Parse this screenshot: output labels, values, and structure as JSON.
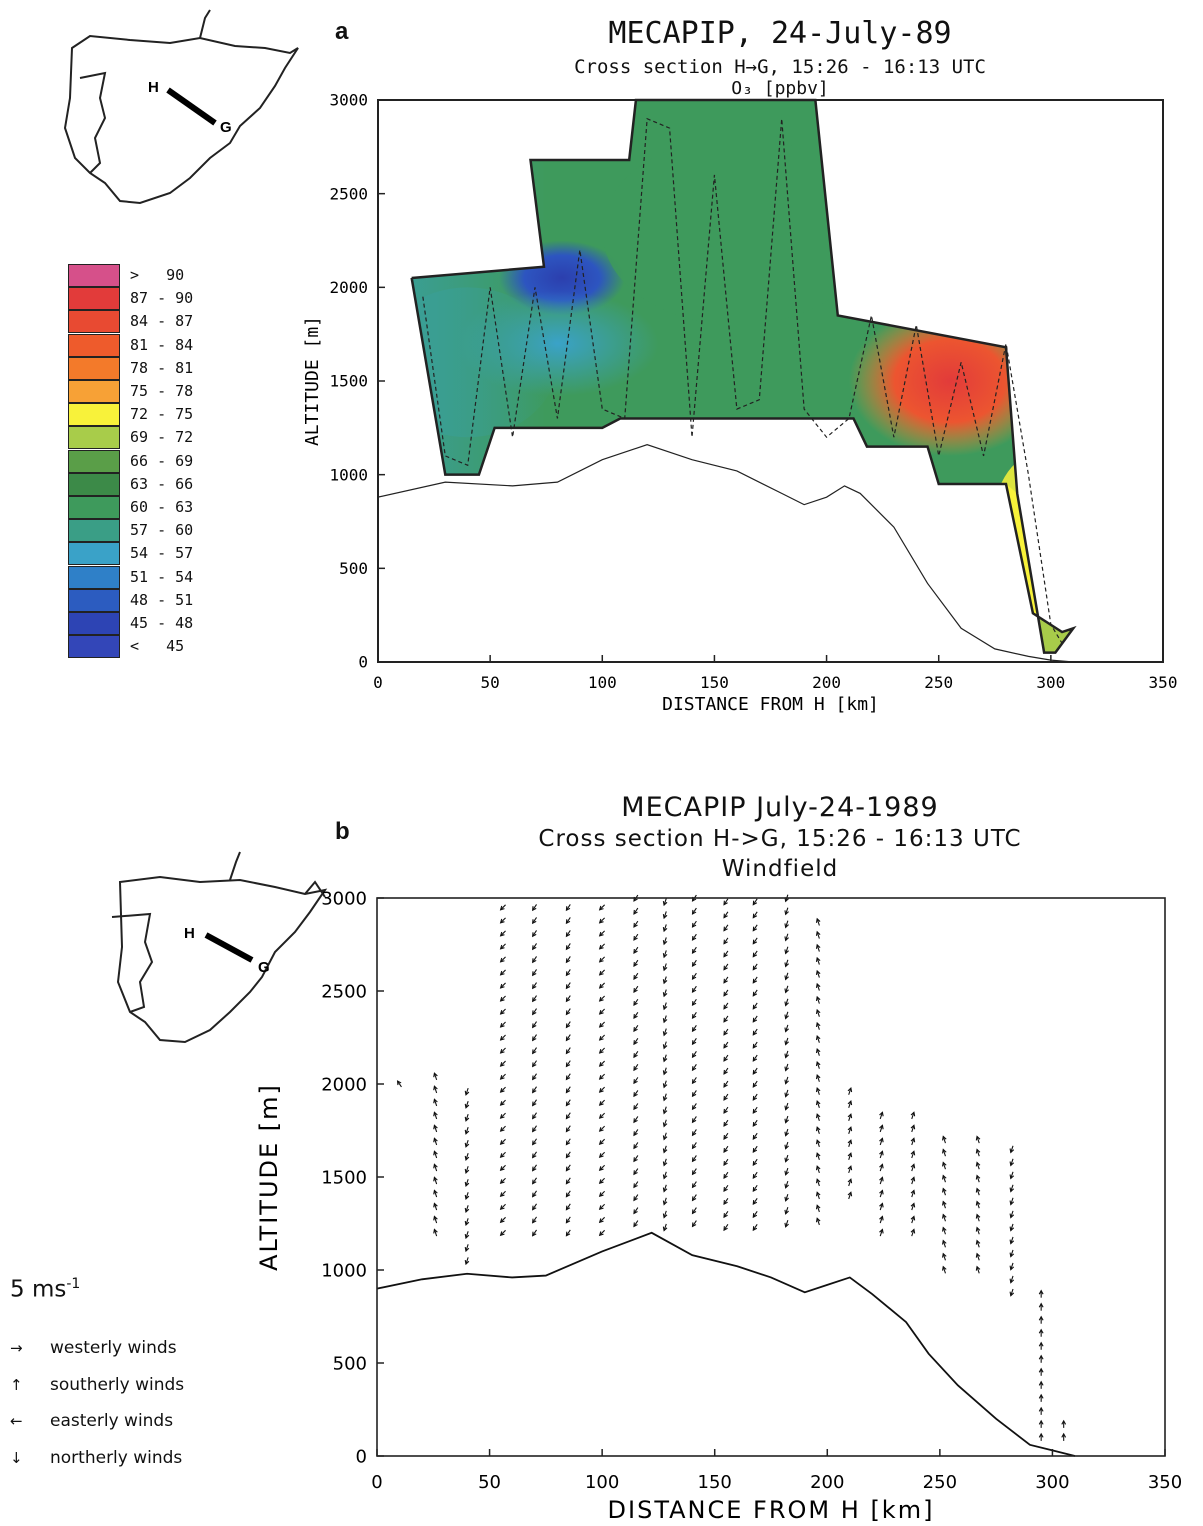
{
  "panel_a": {
    "label": "a",
    "title": "MECAPIP, 24-July-89",
    "subtitle": "Cross section H→G, 15:26 - 16:13 UTC",
    "variable": "O₃ [ppbv]",
    "map_labels": {
      "start": "H",
      "end": "G"
    }
  },
  "panel_b": {
    "label": "b",
    "title": "MECAPIP July-24-1989",
    "subtitle": "Cross section H->G, 15:26 - 16:13 UTC",
    "variable": "Windfield",
    "map_labels": {
      "start": "H",
      "end": "G"
    },
    "speed_reference": "5 ms",
    "speed_reference_exponent": "-1",
    "wind_key": [
      {
        "arrow": "→",
        "label": "westerly winds"
      },
      {
        "arrow": "↑",
        "label": "southerly winds"
      },
      {
        "arrow": "←",
        "label": "easterly winds"
      },
      {
        "arrow": "↓",
        "label": "northerly winds"
      }
    ]
  },
  "legend": [
    {
      "label": ">   90",
      "color": "#d6508a"
    },
    {
      "label": "87 - 90",
      "color": "#e23b3a"
    },
    {
      "label": "84 - 87",
      "color": "#e84a32"
    },
    {
      "label": "81 - 84",
      "color": "#ee5b2c"
    },
    {
      "label": "78 - 81",
      "color": "#f37a2a"
    },
    {
      "label": "75 - 78",
      "color": "#f7a136"
    },
    {
      "label": "72 - 75",
      "color": "#f8f23a"
    },
    {
      "label": "69 - 72",
      "color": "#a8cc4a"
    },
    {
      "label": "66 - 69",
      "color": "#5a9e48"
    },
    {
      "label": "63 - 66",
      "color": "#3c8a48"
    },
    {
      "label": "60 - 63",
      "color": "#3e9a5c"
    },
    {
      "label": "57 - 60",
      "color": "#3a9e86"
    },
    {
      "label": "54 - 57",
      "color": "#3aa2c8"
    },
    {
      "label": "51 - 54",
      "color": "#2f80c8"
    },
    {
      "label": "48 - 51",
      "color": "#2c5cc0"
    },
    {
      "label": "45 - 48",
      "color": "#2d44b4"
    },
    {
      "label": "<   45",
      "color": "#3346b8"
    }
  ],
  "chart_data": [
    {
      "type": "heatmap",
      "title": "MECAPIP, 24-July-89",
      "subtitle": "Cross section H→G, 15:26 - 16:13 UTC",
      "variable": "O₃ [ppbv]",
      "xlabel": "DISTANCE FROM H [km]",
      "ylabel": "ALTITUDE [m]",
      "xlim": [
        0,
        350
      ],
      "ylim": [
        0,
        3000
      ],
      "xticks": [
        0,
        50,
        100,
        150,
        200,
        250,
        300,
        350
      ],
      "yticks": [
        0,
        500,
        1000,
        1500,
        2000,
        2500,
        3000
      ],
      "region_outline": [
        [
          15,
          2050
        ],
        [
          30,
          1000
        ],
        [
          45,
          1000
        ],
        [
          52,
          1250
        ],
        [
          100,
          1250
        ],
        [
          108,
          1300
        ],
        [
          212,
          1300
        ],
        [
          218,
          1150
        ],
        [
          245,
          1150
        ],
        [
          250,
          950
        ],
        [
          280,
          950
        ],
        [
          292,
          260
        ],
        [
          305,
          160
        ],
        [
          310,
          180
        ],
        [
          302,
          50
        ],
        [
          297,
          50
        ],
        [
          285,
          900
        ],
        [
          280,
          1680
        ],
        [
          205,
          1850
        ],
        [
          195,
          3000
        ],
        [
          115,
          3000
        ],
        [
          112,
          2680
        ],
        [
          68,
          2680
        ],
        [
          74,
          2110
        ],
        [
          15,
          2050
        ]
      ],
      "ozone_zones": [
        {
          "range": "45 - 48",
          "center": [
            82,
            2050
          ]
        },
        {
          "range": "51 - 54",
          "center": [
            80,
            1700
          ]
        },
        {
          "range": "57 - 60",
          "center": [
            40,
            1600
          ]
        },
        {
          "range": "60 - 63",
          "center": [
            160,
            2300
          ]
        },
        {
          "range": "78 - 81",
          "center": [
            255,
            1500
          ]
        },
        {
          "range": "72 - 75",
          "center": [
            292,
            600
          ]
        }
      ],
      "terrain": {
        "x": [
          0,
          30,
          60,
          80,
          100,
          120,
          140,
          160,
          180,
          190,
          200,
          208,
          215,
          230,
          245,
          260,
          275,
          290,
          300,
          310
        ],
        "y": [
          880,
          960,
          940,
          960,
          1080,
          1160,
          1080,
          1020,
          900,
          840,
          880,
          940,
          900,
          720,
          420,
          180,
          70,
          30,
          10,
          0
        ]
      },
      "flight_track": {
        "x": [
          20,
          30,
          40,
          50,
          60,
          70,
          80,
          90,
          100,
          110,
          120,
          130,
          140,
          150,
          160,
          170,
          180,
          190,
          200,
          210,
          220,
          230,
          240,
          250,
          260,
          270,
          280,
          290,
          300,
          305
        ],
        "y": [
          1950,
          1100,
          1050,
          2000,
          1200,
          2000,
          1300,
          2200,
          1350,
          1300,
          2900,
          2850,
          1200,
          2600,
          1350,
          1400,
          2900,
          1350,
          1200,
          1300,
          1850,
          1200,
          1800,
          1100,
          1600,
          1100,
          1700,
          1000,
          200,
          100
        ]
      }
    },
    {
      "type": "scatter",
      "title": "MECAPIP July-24-1989",
      "subtitle": "Cross section H->G, 15:26 - 16:13 UTC",
      "variable": "Windfield",
      "xlabel": "DISTANCE FROM H [km]",
      "ylabel": "ALTITUDE [m]",
      "xlim": [
        0,
        350
      ],
      "ylim": [
        0,
        3000
      ],
      "xticks": [
        0,
        50,
        100,
        150,
        200,
        250,
        300,
        350
      ],
      "yticks": [
        0,
        500,
        1000,
        1500,
        2000,
        2500,
        3000
      ],
      "terrain": {
        "x": [
          0,
          20,
          40,
          60,
          75,
          100,
          122,
          140,
          160,
          175,
          190,
          200,
          210,
          220,
          235,
          245,
          258,
          275,
          290,
          300,
          310
        ],
        "y": [
          900,
          950,
          980,
          960,
          970,
          1100,
          1200,
          1080,
          1020,
          960,
          880,
          920,
          960,
          870,
          720,
          550,
          380,
          200,
          60,
          30,
          0
        ]
      },
      "wind_columns": [
        {
          "x": 10,
          "z_bottom": 2000,
          "z_top": 2060,
          "u": -2,
          "v": 3
        },
        {
          "x": 26,
          "z_bottom": 1200,
          "z_top": 2050,
          "u": -1,
          "v": 3
        },
        {
          "x": 40,
          "z_bottom": 1050,
          "z_top": 2000,
          "u": -1,
          "v": -3
        },
        {
          "x": 56,
          "z_bottom": 1200,
          "z_top": 3000,
          "u": -3,
          "v": -3
        },
        {
          "x": 70,
          "z_bottom": 1200,
          "z_top": 3000,
          "u": -2,
          "v": -3
        },
        {
          "x": 85,
          "z_bottom": 1200,
          "z_top": 3000,
          "u": -2,
          "v": -3
        },
        {
          "x": 100,
          "z_bottom": 1200,
          "z_top": 3000,
          "u": -3,
          "v": -3
        },
        {
          "x": 115,
          "z_bottom": 1250,
          "z_top": 3000,
          "u": -2,
          "v": -3
        },
        {
          "x": 128,
          "z_bottom": 1230,
          "z_top": 3000,
          "u": -1,
          "v": -3
        },
        {
          "x": 141,
          "z_bottom": 1250,
          "z_top": 3000,
          "u": -2,
          "v": -3
        },
        {
          "x": 155,
          "z_bottom": 1230,
          "z_top": 3000,
          "u": -2,
          "v": -3
        },
        {
          "x": 168,
          "z_bottom": 1230,
          "z_top": 3000,
          "u": -2,
          "v": -3
        },
        {
          "x": 182,
          "z_bottom": 1250,
          "z_top": 3000,
          "u": -1,
          "v": -3
        },
        {
          "x": 196,
          "z_bottom": 1260,
          "z_top": 2900,
          "u": -1,
          "v": 3
        },
        {
          "x": 210,
          "z_bottom": 1400,
          "z_top": 2020,
          "u": 1,
          "v": 3
        },
        {
          "x": 224,
          "z_bottom": 1200,
          "z_top": 1850,
          "u": 1,
          "v": 3
        },
        {
          "x": 238,
          "z_bottom": 1200,
          "z_top": 1870,
          "u": 1,
          "v": 3
        },
        {
          "x": 252,
          "z_bottom": 1000,
          "z_top": 1700,
          "u": -1,
          "v": 3
        },
        {
          "x": 267,
          "z_bottom": 1000,
          "z_top": 1700,
          "u": -1,
          "v": 3
        },
        {
          "x": 282,
          "z_bottom": 880,
          "z_top": 1700,
          "u": -1,
          "v": -3
        },
        {
          "x": 295,
          "z_bottom": 100,
          "z_top": 880,
          "u": 0,
          "v": 3
        },
        {
          "x": 305,
          "z_bottom": 100,
          "z_top": 220,
          "u": 0,
          "v": 3
        }
      ]
    }
  ]
}
